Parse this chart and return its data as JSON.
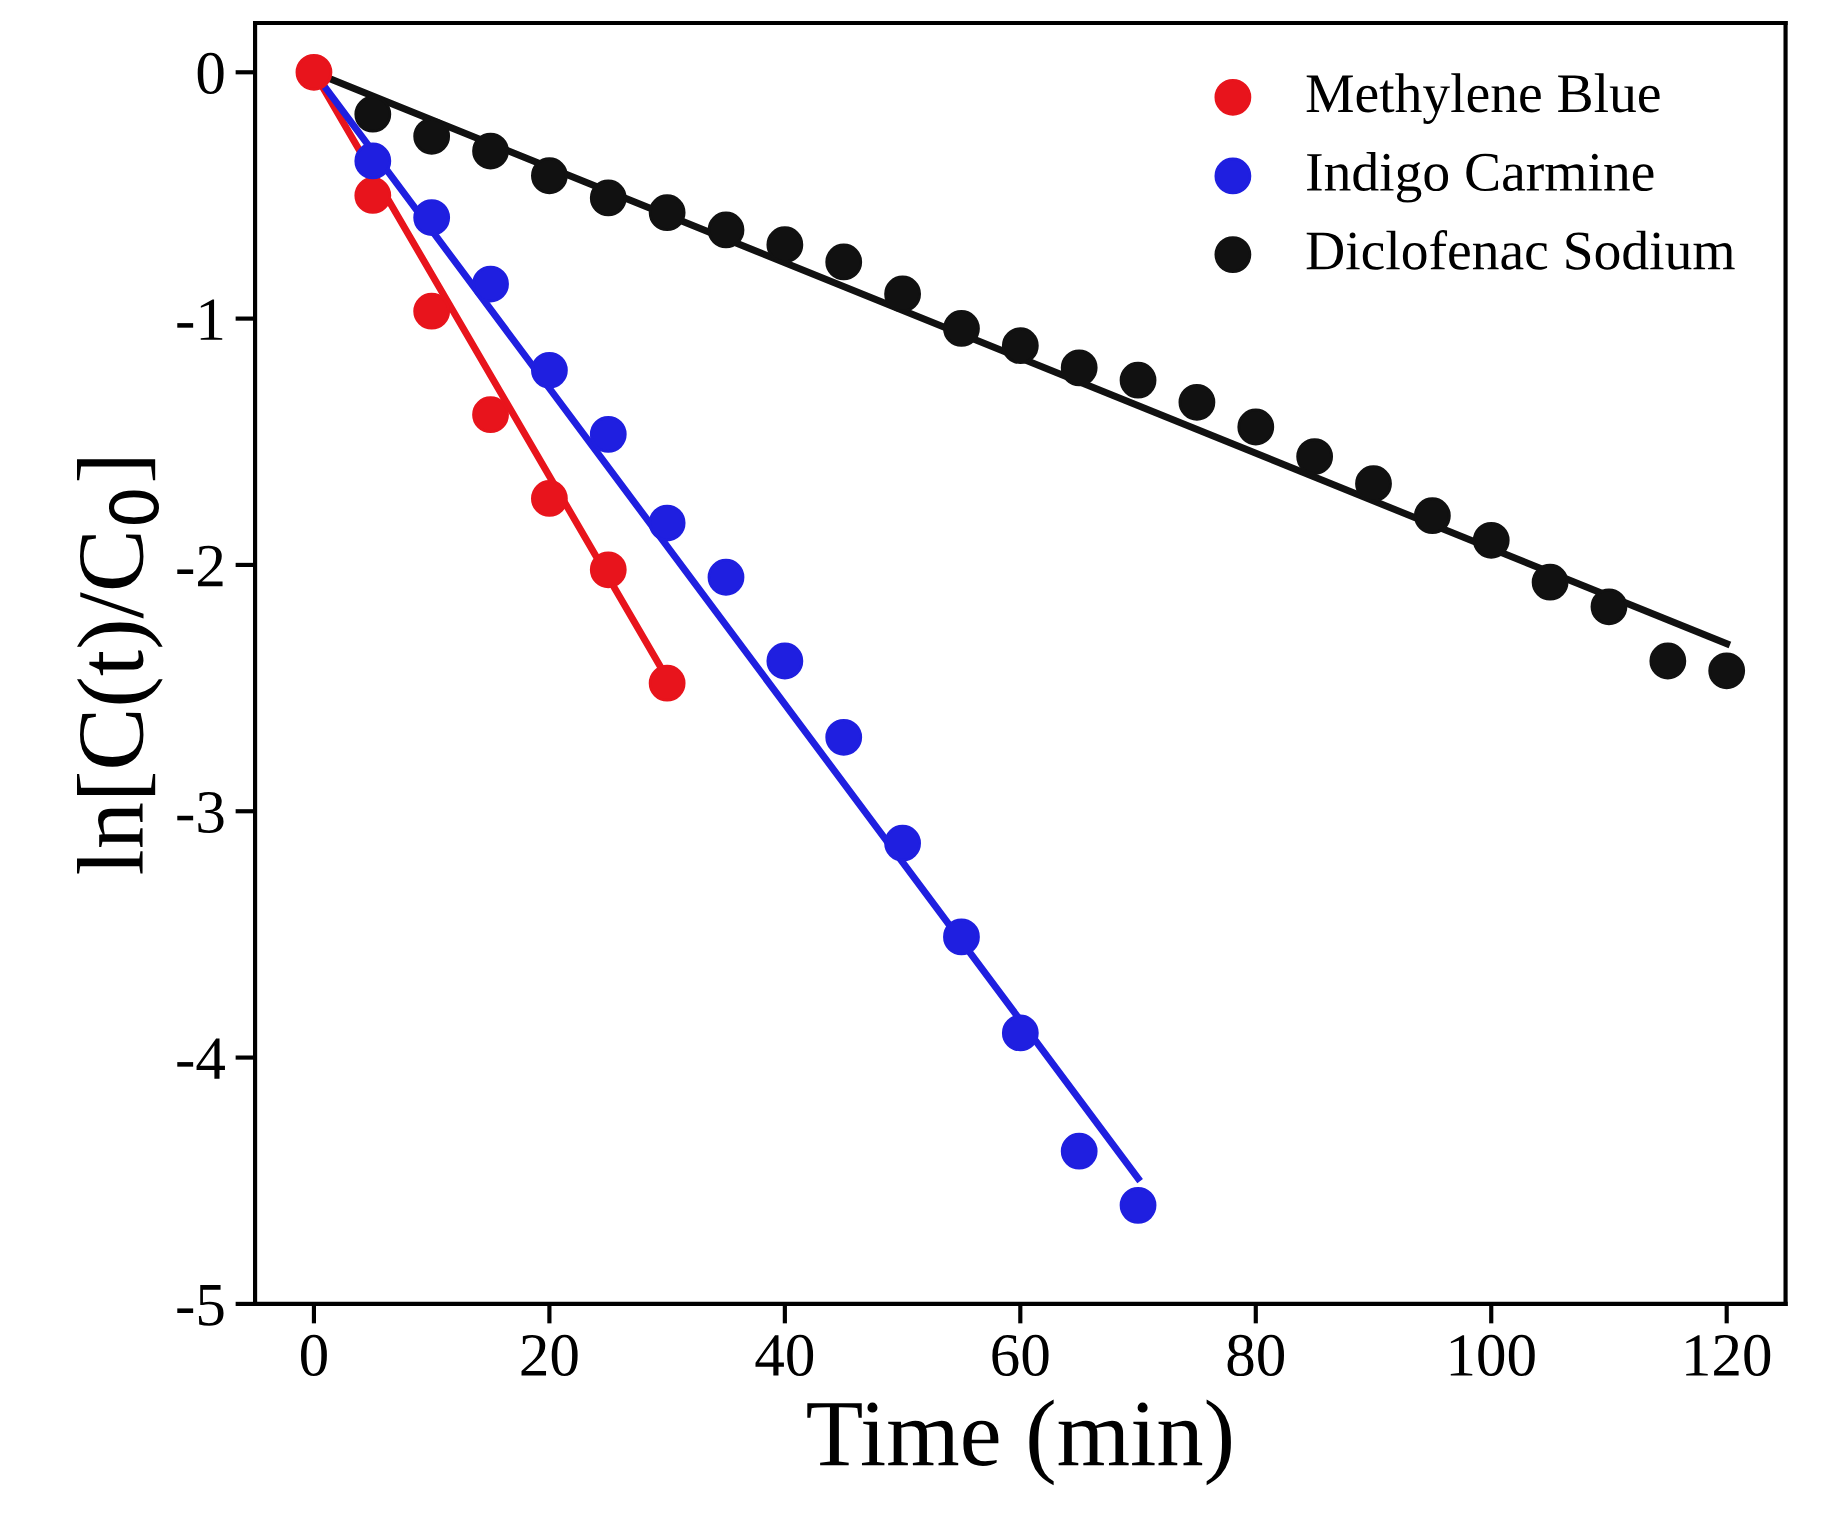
{
  "chart_data": {
    "type": "scatter",
    "xlabel": "Time (min)",
    "ylabel": "ln[C(t)/C$_{0}$]",
    "xlim": [
      -5,
      125
    ],
    "ylim": [
      -5,
      0.2
    ],
    "xticks": [
      0,
      20,
      40,
      60,
      80,
      100,
      120
    ],
    "yticks": [
      -5,
      -4,
      -3,
      -2,
      -1,
      0
    ],
    "grid": false,
    "legend": "top right",
    "series": [
      {
        "name": "Methylene Blue",
        "marker": "circle",
        "color": "#e8141c",
        "x": [
          0,
          5,
          10,
          15,
          20,
          25,
          30
        ],
        "values": [
          0,
          -0.5,
          -0.97,
          -1.39,
          -1.73,
          -2.02,
          -2.48
        ]
      },
      {
        "name": "Indigo Carmine",
        "marker": "circle",
        "color": "#1f1fe0",
        "x": [
          5,
          10,
          15,
          20,
          25,
          30,
          35,
          40,
          45,
          50,
          55,
          60,
          65,
          70
        ],
        "values": [
          -0.36,
          -0.59,
          -0.86,
          -1.21,
          -1.47,
          -1.83,
          -2.05,
          -2.39,
          -2.7,
          -3.13,
          -3.51,
          -3.9,
          -4.38,
          -4.6
        ]
      },
      {
        "name": "Diclofenac Sodium",
        "marker": "circle",
        "color": "#111111",
        "x": [
          5,
          10,
          15,
          20,
          25,
          30,
          35,
          40,
          45,
          50,
          55,
          60,
          65,
          70,
          75,
          80,
          85,
          90,
          95,
          100,
          105,
          110,
          115,
          120
        ],
        "values": [
          -0.17,
          -0.26,
          -0.32,
          -0.42,
          -0.51,
          -0.57,
          -0.64,
          -0.7,
          -0.77,
          -0.9,
          -1.04,
          -1.11,
          -1.2,
          -1.25,
          -1.34,
          -1.44,
          -1.56,
          -1.67,
          -1.8,
          -1.9,
          -2.07,
          -2.17,
          -2.39,
          -2.43
        ]
      },
      {
        "type": "line",
        "marker": "none",
        "color": "#e8141c",
        "x": [
          0,
          30
        ],
        "values": [
          0,
          -2.46
        ]
      },
      {
        "type": "line",
        "marker": "none",
        "color": "#1f1fe0",
        "x": [
          0,
          70
        ],
        "values": [
          0,
          -4.49
        ]
      },
      {
        "type": "line",
        "marker": "none",
        "color": "#111111",
        "x": [
          0,
          120
        ],
        "values": [
          0,
          -2.32
        ]
      }
    ]
  }
}
